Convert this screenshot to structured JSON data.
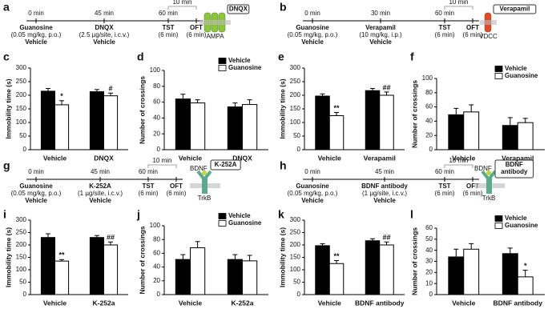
{
  "timelines": [
    {
      "panel": "a",
      "steps": [
        {
          "time": "0 min",
          "name": "Guanosine",
          "dose": "(0.05 mg/kg, p.o.)",
          "control": "Vehicle"
        },
        {
          "time": "45 min",
          "name": "DNQX",
          "dose": "(2.5 µg/site, i.c.v.)",
          "control": "Vehicle"
        },
        {
          "time": "60 min",
          "name": "TST",
          "dose": "(6 min)"
        },
        {
          "name": "OFT",
          "dose": "(6 min)"
        }
      ],
      "interval": "10 min",
      "icon": {
        "drug": [
          "DNQX"
        ],
        "receptor": "AMPA",
        "color": "#8cc63f"
      }
    },
    {
      "panel": "b",
      "steps": [
        {
          "time": "0 min",
          "name": "Guanosine",
          "dose": "(0.05 mg/kg, p.o.)",
          "control": "Vehicle"
        },
        {
          "time": "30 min",
          "name": "Verapamil",
          "dose": "(10 mg/kg, i.p.)",
          "control": "Vehicle"
        },
        {
          "time": "60 min",
          "name": "TST",
          "dose": "(6 min)"
        },
        {
          "name": "OFT",
          "dose": "(6 min)"
        }
      ],
      "interval": "10 min",
      "icon": {
        "drug": [
          "Verapamil"
        ],
        "receptor": "VDCC",
        "color": "#e8452c"
      }
    },
    {
      "panel": "g",
      "steps": [
        {
          "time": "0 min",
          "name": "Guanosine",
          "dose": "(0.05 mg/kg, p.o.)",
          "control": "Vehicle"
        },
        {
          "time": "45 min",
          "name": "K-252A",
          "dose": "(1 µg/site, i.c.v.)",
          "control": "Vehicle"
        },
        {
          "time": "60 min",
          "name": "TST",
          "dose": "(6 min)"
        },
        {
          "name": "OFT",
          "dose": "(6 min)"
        }
      ],
      "interval": "10 min",
      "icon": {
        "ligand": "BDNF",
        "drug": [
          "K-252A"
        ],
        "receptor": "TrkB",
        "color": "#5aab8c"
      }
    },
    {
      "panel": "h",
      "steps": [
        {
          "time": "0 min",
          "name": "Guanosine",
          "dose": "(0.05 mg/kg, p.o.)",
          "control": "Vehicle"
        },
        {
          "time": "45 min",
          "name": "BDNF antibody",
          "dose": "(1 µg/site, i.c.v.)",
          "control": "Vehicle"
        },
        {
          "time": "60 min",
          "name": "TST",
          "dose": "(6 min)"
        },
        {
          "name": "OFT",
          "dose": "(6 min)"
        }
      ],
      "interval": "10 min",
      "icon": {
        "ligand": "BDNF",
        "drug": [
          "BDNF",
          "antibody"
        ],
        "receptor": "TrkB",
        "color": "#5aab8c"
      }
    }
  ],
  "chart_data": [
    {
      "type": "bar",
      "panel": "c",
      "y_label": "Immobility time (s)",
      "categories": [
        "Vehicle",
        "DNQX"
      ],
      "series": [
        {
          "name": "Vehicle",
          "color": "#000000",
          "values": [
            215,
            213
          ],
          "errors": [
            10,
            8
          ],
          "marks": [
            null,
            null
          ]
        },
        {
          "name": "Guanosine",
          "color": "#ffffff",
          "values": [
            165,
            198
          ],
          "errors": [
            15,
            10
          ],
          "marks": [
            "*",
            "#"
          ]
        }
      ],
      "ylim": [
        0,
        300
      ],
      "yticks": [
        0,
        50,
        100,
        150,
        200,
        250,
        300
      ],
      "legend": false
    },
    {
      "type": "bar",
      "panel": "d",
      "y_label": "Number of crossings",
      "categories": [
        "Vehicle",
        "DNQX"
      ],
      "series": [
        {
          "name": "Vehicle",
          "color": "#000000",
          "values": [
            64,
            54
          ],
          "errors": [
            6,
            5
          ],
          "marks": [
            null,
            null
          ]
        },
        {
          "name": "Guanosine",
          "color": "#ffffff",
          "values": [
            59,
            57
          ],
          "errors": [
            4,
            6
          ],
          "marks": [
            null,
            null
          ]
        }
      ],
      "ylim": [
        0,
        100
      ],
      "yticks": [
        0,
        20,
        40,
        60,
        80,
        100
      ],
      "legend": true,
      "legend_corner": "upper right"
    },
    {
      "type": "bar",
      "panel": "e",
      "y_label": "Immobility time (s)",
      "categories": [
        "Vehicle",
        "Verapamil"
      ],
      "series": [
        {
          "name": "Vehicle",
          "color": "#000000",
          "values": [
            197,
            217
          ],
          "errors": [
            8,
            8
          ],
          "marks": [
            null,
            null
          ]
        },
        {
          "name": "Guanosine",
          "color": "#ffffff",
          "values": [
            125,
            200
          ],
          "errors": [
            12,
            12
          ],
          "marks": [
            "**",
            "##"
          ]
        }
      ],
      "ylim": [
        0,
        300
      ],
      "yticks": [
        0,
        50,
        100,
        150,
        200,
        250,
        300
      ],
      "legend": false
    },
    {
      "type": "bar",
      "panel": "f",
      "y_label": "Number of crossings",
      "categories": [
        "Vehicle",
        "Verapamil"
      ],
      "series": [
        {
          "name": "Vehicle",
          "color": "#000000",
          "values": [
            49,
            34
          ],
          "errors": [
            9,
            11
          ],
          "marks": [
            null,
            null
          ]
        },
        {
          "name": "Guanosine",
          "color": "#ffffff",
          "values": [
            53,
            38
          ],
          "errors": [
            10,
            6
          ],
          "marks": [
            null,
            null
          ]
        }
      ],
      "ylim": [
        0,
        100
      ],
      "yticks": [
        0,
        20,
        40,
        60,
        80,
        100
      ],
      "legend": true,
      "legend_corner": "upper right"
    },
    {
      "type": "bar",
      "panel": "i",
      "y_label": "Immobility time (s)",
      "categories": [
        "Vehicle",
        "K-252a"
      ],
      "series": [
        {
          "name": "Vehicle",
          "color": "#000000",
          "values": [
            230,
            230
          ],
          "errors": [
            15,
            8
          ],
          "marks": [
            null,
            null
          ]
        },
        {
          "name": "Guanosine",
          "color": "#ffffff",
          "values": [
            135,
            200
          ],
          "errors": [
            6,
            12
          ],
          "marks": [
            "**",
            "##"
          ]
        }
      ],
      "ylim": [
        0,
        300
      ],
      "yticks": [
        0,
        50,
        100,
        150,
        200,
        250,
        300
      ],
      "legend": false
    },
    {
      "type": "bar",
      "panel": "j",
      "y_label": "Number of crossings",
      "categories": [
        "Vehicle",
        "K-252a"
      ],
      "series": [
        {
          "name": "Vehicle",
          "color": "#000000",
          "values": [
            51,
            51
          ],
          "errors": [
            7,
            7
          ],
          "marks": [
            null,
            null
          ]
        },
        {
          "name": "Guanosine",
          "color": "#ffffff",
          "values": [
            68,
            49
          ],
          "errors": [
            9,
            8
          ],
          "marks": [
            null,
            null
          ]
        }
      ],
      "ylim": [
        0,
        100
      ],
      "yticks": [
        0,
        20,
        40,
        60,
        80,
        100
      ],
      "legend": true,
      "legend_corner": "upper right"
    },
    {
      "type": "bar",
      "panel": "k",
      "y_label": "Immobility time (s)",
      "categories": [
        "Vehicle",
        "BDNF antibody"
      ],
      "series": [
        {
          "name": "Vehicle",
          "color": "#000000",
          "values": [
            197,
            217
          ],
          "errors": [
            8,
            8
          ],
          "marks": [
            null,
            null
          ]
        },
        {
          "name": "Guanosine",
          "color": "#ffffff",
          "values": [
            125,
            200
          ],
          "errors": [
            12,
            12
          ],
          "marks": [
            "**",
            "##"
          ]
        }
      ],
      "ylim": [
        0,
        300
      ],
      "yticks": [
        0,
        50,
        100,
        150,
        200,
        250,
        300
      ],
      "legend": false
    },
    {
      "type": "bar",
      "panel": "l",
      "y_label": "Number of crossings",
      "categories": [
        "Vehicle",
        "BDNF antibody"
      ],
      "series": [
        {
          "name": "Vehicle",
          "color": "#000000",
          "values": [
            34,
            37
          ],
          "errors": [
            7,
            5
          ],
          "marks": [
            null,
            null
          ]
        },
        {
          "name": "Guanosine",
          "color": "#ffffff",
          "values": [
            41,
            16
          ],
          "errors": [
            5,
            6
          ],
          "marks": [
            null,
            "*"
          ]
        }
      ],
      "ylim": [
        0,
        60
      ],
      "yticks": [
        0,
        10,
        20,
        30,
        40,
        50,
        60
      ],
      "legend": true,
      "legend_corner": "upper right"
    }
  ]
}
